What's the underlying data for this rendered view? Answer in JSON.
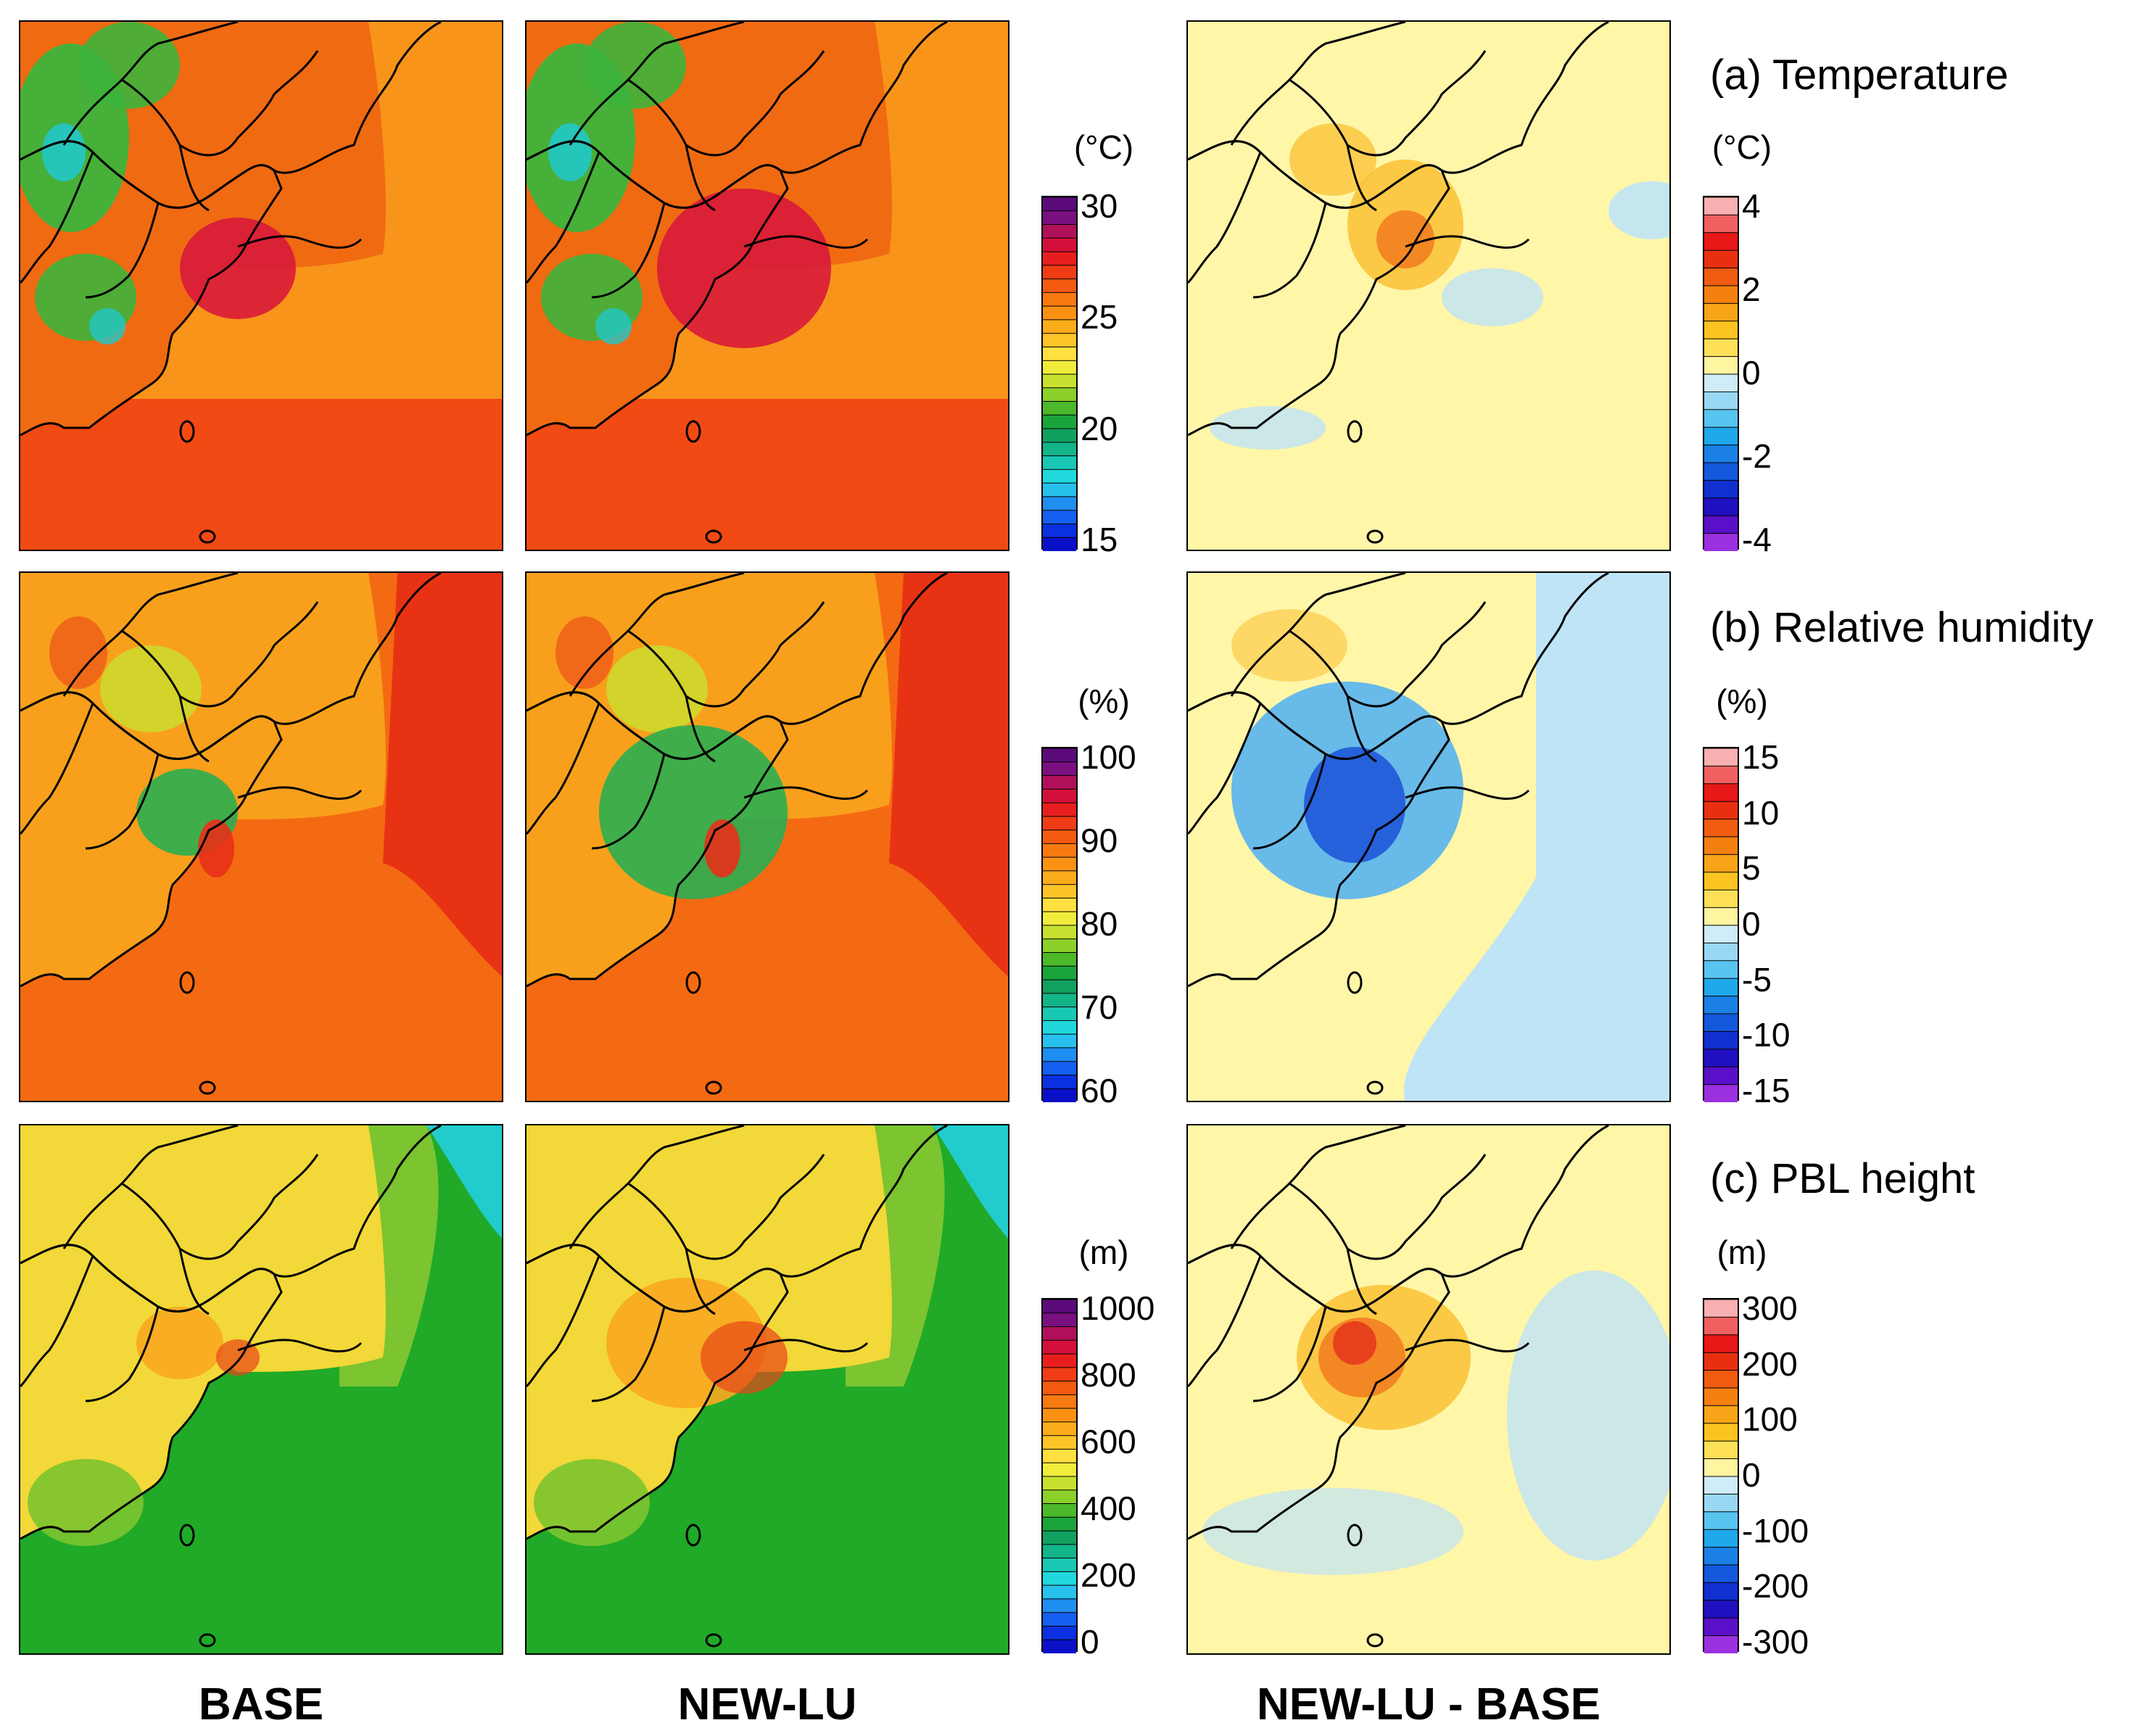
{
  "columns": {
    "base": "BASE",
    "newlu": "NEW-LU",
    "diff": "NEW-LU - BASE"
  },
  "rows": [
    {
      "id": "temperature",
      "title": "(a) Temperature",
      "unit": "(°C)",
      "scale_ticks": [
        "30",
        "25",
        "20",
        "15"
      ],
      "diff_unit": "(°C)",
      "diff_ticks": [
        "4",
        "2",
        "0",
        "-2",
        "-4"
      ]
    },
    {
      "id": "relative-humidity",
      "title": "(b) Relative humidity",
      "unit": "(%)",
      "scale_ticks": [
        "100",
        "90",
        "80",
        "70",
        "60"
      ],
      "diff_unit": "(%)",
      "diff_ticks": [
        "15",
        "10",
        "5",
        "0",
        "-5",
        "-10",
        "-15"
      ]
    },
    {
      "id": "pbl-height",
      "title": "(c) PBL height",
      "unit": "(m)",
      "scale_ticks": [
        "1000",
        "800",
        "600",
        "400",
        "200",
        "0"
      ],
      "diff_unit": "(m)",
      "diff_ticks": [
        "300",
        "200",
        "100",
        "0",
        "-100",
        "-200",
        "-300"
      ]
    }
  ],
  "palettes": {
    "abs": [
      "#5b0a7a",
      "#7a1080",
      "#b0105a",
      "#d4103a",
      "#e81e1e",
      "#f03c14",
      "#f45a10",
      "#f77a10",
      "#f99212",
      "#fbac1a",
      "#fdc42a",
      "#ffe040",
      "#f0ec3c",
      "#c8e030",
      "#8cd02a",
      "#4cb82a",
      "#1aa43a",
      "#10a060",
      "#12b488",
      "#18c8b4",
      "#20d8dc",
      "#28c0ec",
      "#1e8ef0",
      "#1460f0",
      "#0a30e0",
      "#0a10c8"
    ],
    "diff": [
      "#f8b0b0",
      "#f06060",
      "#e81818",
      "#e83010",
      "#f05c10",
      "#f48010",
      "#f8a418",
      "#fcc420",
      "#fde058",
      "#fff4a0",
      "#d0ecf8",
      "#98d8f4",
      "#58c4f0",
      "#20a8ec",
      "#1a80e4",
      "#1458dc",
      "#1030d0",
      "#2010c0",
      "#5a10c8",
      "#9a30e0"
    ],
    "abs_colors": {
      "temperature": {
        "sea": "#f8941a",
        "sea_south": "#f24a14",
        "inland": "#f06a12",
        "mountain": "#3cb43c",
        "cold": "#22c8c8",
        "urban": "#d81a3a"
      },
      "relative-humidity": {
        "sea": "#f46a12",
        "sea_east": "#e83214",
        "inland": "#f8a01c",
        "wet": "#2aae50",
        "cool": "#c8e030",
        "urban": "#e8301a"
      },
      "pbl-height": {
        "sea": "#20aa28",
        "sea_north": "#22cccc",
        "inland": "#f2d838",
        "orange": "#f8a820",
        "coast": "#7cc430",
        "urban": "#e84418"
      }
    },
    "diff_colors": {
      "zero": "#fff6a8",
      "neg": "#bfe4f6",
      "neg2": "#58b4ee",
      "neg3": "#1e58d8",
      "pos": "#fbc43a",
      "pos2": "#f28020",
      "pos3": "#e63a1c"
    }
  }
}
